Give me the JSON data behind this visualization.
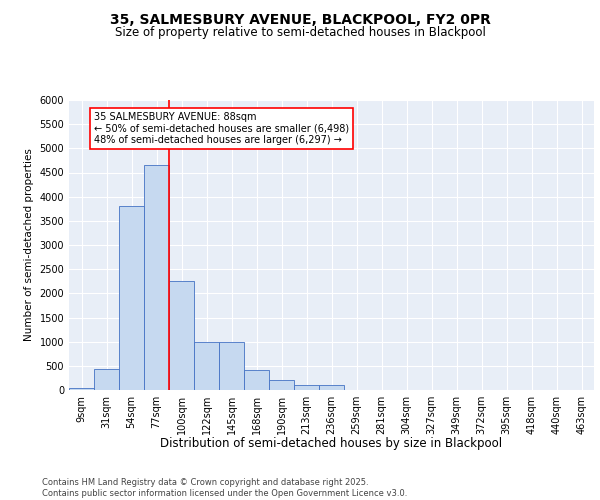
{
  "title1": "35, SALMESBURY AVENUE, BLACKPOOL, FY2 0PR",
  "title2": "Size of property relative to semi-detached houses in Blackpool",
  "xlabel": "Distribution of semi-detached houses by size in Blackpool",
  "ylabel": "Number of semi-detached properties",
  "categories": [
    "9sqm",
    "31sqm",
    "54sqm",
    "77sqm",
    "100sqm",
    "122sqm",
    "145sqm",
    "168sqm",
    "190sqm",
    "213sqm",
    "236sqm",
    "259sqm",
    "281sqm",
    "304sqm",
    "327sqm",
    "349sqm",
    "372sqm",
    "395sqm",
    "418sqm",
    "440sqm",
    "463sqm"
  ],
  "values": [
    50,
    430,
    3800,
    4650,
    2250,
    1000,
    1000,
    420,
    200,
    110,
    100,
    0,
    0,
    0,
    0,
    0,
    0,
    0,
    0,
    0,
    0
  ],
  "bar_color": "#c6d9f0",
  "bar_edge_color": "#4472c4",
  "vline_color": "red",
  "vline_x": 3.5,
  "ylim": [
    0,
    6000
  ],
  "yticks": [
    0,
    500,
    1000,
    1500,
    2000,
    2500,
    3000,
    3500,
    4000,
    4500,
    5000,
    5500,
    6000
  ],
  "bg_color": "#e8eef7",
  "annotation_title": "35 SALMESBURY AVENUE: 88sqm",
  "annotation_line1": "← 50% of semi-detached houses are smaller (6,498)",
  "annotation_line2": "48% of semi-detached houses are larger (6,297) →",
  "footnote": "Contains HM Land Registry data © Crown copyright and database right 2025.\nContains public sector information licensed under the Open Government Licence v3.0.",
  "title1_fontsize": 10,
  "title2_fontsize": 8.5,
  "xlabel_fontsize": 8.5,
  "ylabel_fontsize": 7.5,
  "tick_fontsize": 7,
  "annot_fontsize": 7,
  "footnote_fontsize": 6
}
